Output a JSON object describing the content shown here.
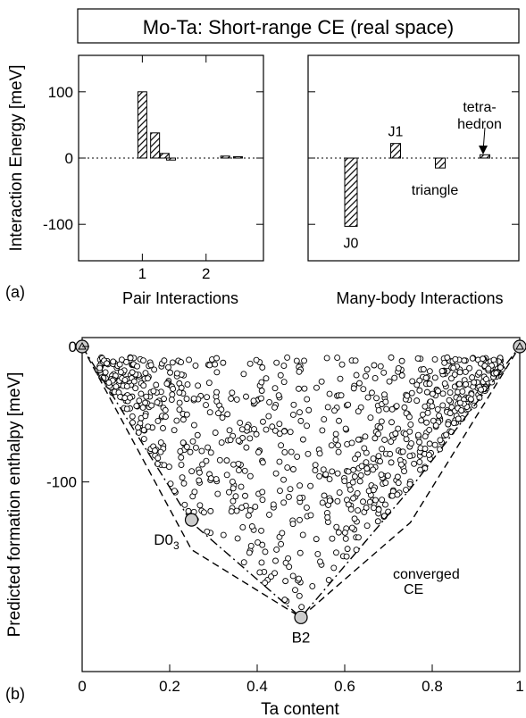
{
  "colors": {
    "axis": "#000000",
    "background": "#ffffff",
    "bar_fill": "hatched-black",
    "hull": "#000000"
  },
  "chart_data": [
    {
      "type": "bar",
      "panel": "(a)",
      "title": "Mo-Ta: Short-range CE (real space)",
      "ylabel": "Interaction Energy [meV]",
      "ylim": [
        -155,
        155
      ],
      "yticks": [
        -100,
        0,
        100
      ],
      "subpanels": [
        {
          "xlabel": "Pair Interactions",
          "xlim": [
            0,
            2.9
          ],
          "xticks": [
            1,
            2
          ],
          "bars": [
            {
              "x": 1.0,
              "value": 100,
              "label": ""
            },
            {
              "x": 1.2,
              "value": 38,
              "label": ""
            },
            {
              "x": 1.35,
              "value": 7,
              "label": ""
            },
            {
              "x": 1.45,
              "value": -3,
              "label": ""
            },
            {
              "x": 2.3,
              "value": 3,
              "label": ""
            },
            {
              "x": 2.5,
              "value": 2,
              "label": ""
            }
          ]
        },
        {
          "xlabel": "Many-body Interactions",
          "bars": [
            {
              "x": 1,
              "value": -103,
              "label": "J0"
            },
            {
              "x": 2,
              "value": 22,
              "label": "J1"
            },
            {
              "x": 3,
              "value": -15,
              "label": "triangle"
            },
            {
              "x": 4,
              "value": 5,
              "label": "tetra-\nhedron"
            }
          ]
        }
      ]
    },
    {
      "type": "scatter",
      "panel": "(b)",
      "xlabel": "Ta content",
      "ylabel": "Predicted formation enthalpy [meV]",
      "xlim": [
        0,
        1
      ],
      "ylim": [
        -240,
        0
      ],
      "xticks": [
        "0",
        "0.2",
        "0.4",
        "0.6",
        "0.8",
        "1"
      ],
      "yticks": [
        "0",
        "-100"
      ],
      "ground_states": [
        {
          "x": 0,
          "y": 0,
          "label": ""
        },
        {
          "x": 0.25,
          "y": -128,
          "label": "D0",
          "label_sub": "3"
        },
        {
          "x": 0.5,
          "y": -200,
          "label": "B2"
        },
        {
          "x": 1,
          "y": 0,
          "label": ""
        }
      ],
      "curves": [
        {
          "name": "converged CE",
          "style": "dash-dot",
          "points": [
            [
              0,
              0
            ],
            [
              0.25,
              -130
            ],
            [
              0.5,
              -200
            ],
            [
              0.75,
              -105
            ],
            [
              1,
              0
            ]
          ]
        },
        {
          "name": "",
          "style": "dashed",
          "points": [
            [
              0,
              0
            ],
            [
              0.25,
              -150
            ],
            [
              0.5,
              -200
            ],
            [
              0.75,
              -130
            ],
            [
              1,
              0
            ]
          ]
        }
      ],
      "annotations": [
        "converged",
        "CE"
      ]
    }
  ]
}
